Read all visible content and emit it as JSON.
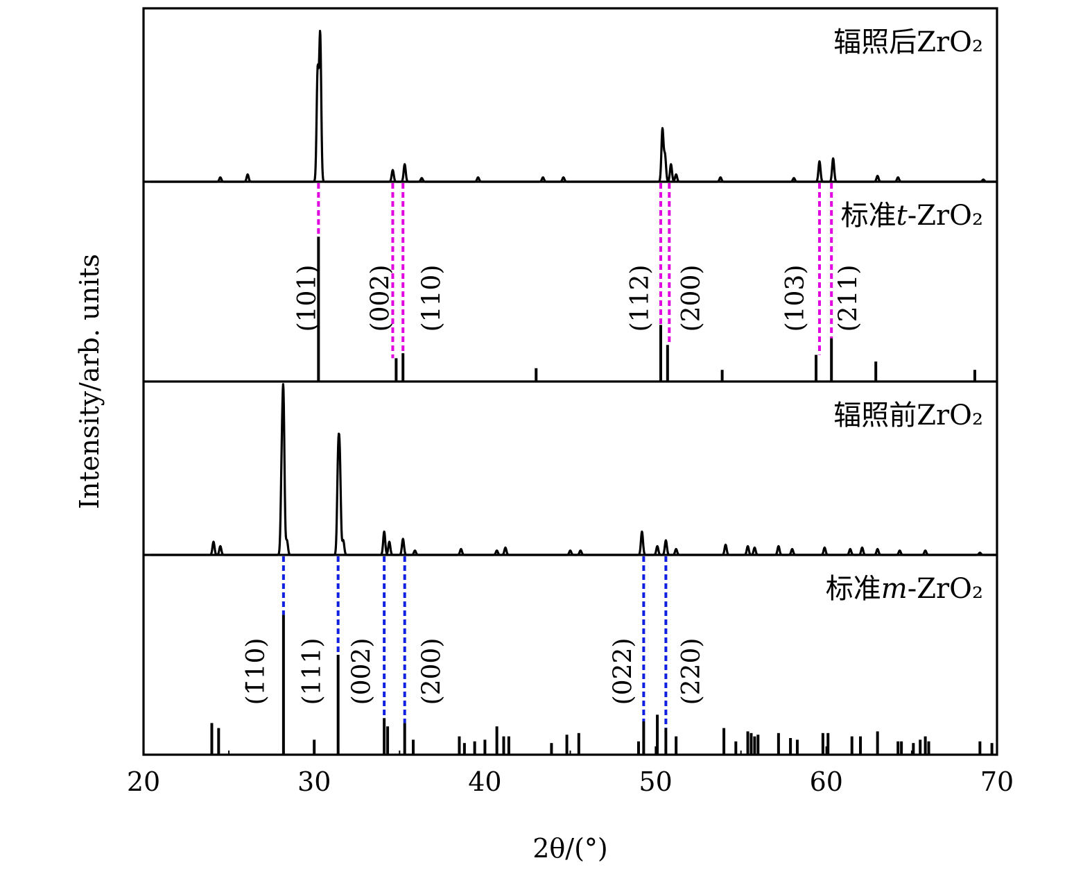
{
  "chart_data": {
    "type": "line",
    "xlabel": "2θ/(°)",
    "ylabel": "Intensity/arb. units",
    "xlim": [
      20,
      70
    ],
    "xticks": [
      20,
      30,
      40,
      50,
      60,
      70
    ],
    "grid": false,
    "panels": [
      {
        "id": "irradiated",
        "label": "辐照后ZrO₂",
        "style": "profile",
        "peaks": [
          {
            "x": 24.5,
            "h": 0.03
          },
          {
            "x": 26.1,
            "h": 0.05
          },
          {
            "x": 30.2,
            "h": 0.75
          },
          {
            "x": 30.35,
            "h": 1.0
          },
          {
            "x": 34.6,
            "h": 0.08
          },
          {
            "x": 35.3,
            "h": 0.12
          },
          {
            "x": 36.3,
            "h": 0.025
          },
          {
            "x": 39.6,
            "h": 0.03
          },
          {
            "x": 43.4,
            "h": 0.03
          },
          {
            "x": 44.6,
            "h": 0.03
          },
          {
            "x": 50.4,
            "h": 0.36
          },
          {
            "x": 50.55,
            "h": 0.18
          },
          {
            "x": 50.9,
            "h": 0.12
          },
          {
            "x": 51.2,
            "h": 0.05
          },
          {
            "x": 53.8,
            "h": 0.03
          },
          {
            "x": 58.1,
            "h": 0.025
          },
          {
            "x": 59.6,
            "h": 0.14
          },
          {
            "x": 60.4,
            "h": 0.16
          },
          {
            "x": 63.0,
            "h": 0.04
          },
          {
            "x": 64.2,
            "h": 0.03
          },
          {
            "x": 69.2,
            "h": 0.015
          }
        ]
      },
      {
        "id": "standard-t",
        "label_prefix": "标准",
        "label_italic": "t",
        "label_suffix": "-ZrO₂",
        "style": "sticks",
        "sticks": [
          {
            "x": 30.25,
            "h": 0.87
          },
          {
            "x": 34.8,
            "h": 0.14
          },
          {
            "x": 35.2,
            "h": 0.17
          },
          {
            "x": 43.0,
            "h": 0.08
          },
          {
            "x": 50.3,
            "h": 0.34
          },
          {
            "x": 50.7,
            "h": 0.22
          },
          {
            "x": 53.9,
            "h": 0.07
          },
          {
            "x": 59.4,
            "h": 0.16
          },
          {
            "x": 60.3,
            "h": 0.26
          },
          {
            "x": 62.9,
            "h": 0.12
          },
          {
            "x": 68.7,
            "h": 0.07
          }
        ],
        "hkl": [
          {
            "text": "(101)",
            "x": 29.6
          },
          {
            "text": "(002)",
            "x": 33.9
          },
          {
            "text": "(110)",
            "x": 36.9
          },
          {
            "text": "(112)",
            "x": 49.1
          },
          {
            "text": "(200)",
            "x": 52.1
          },
          {
            "text": "(103)",
            "x": 58.2
          },
          {
            "text": "(211)",
            "x": 61.3
          }
        ],
        "link_lines": [
          {
            "x": 30.25,
            "y_top": 0.0,
            "y_bottom": 0.87
          },
          {
            "x": 34.6,
            "y_top": 0.0,
            "y_bottom": 0.14
          },
          {
            "x": 35.2,
            "y_top": 0.0,
            "y_bottom": 0.17
          },
          {
            "x": 50.3,
            "y_top": 0.0,
            "y_bottom": 0.34
          },
          {
            "x": 50.8,
            "y_top": 0.0,
            "y_bottom": 0.22
          },
          {
            "x": 59.6,
            "y_top": 0.0,
            "y_bottom": 0.16
          },
          {
            "x": 60.3,
            "y_top": 0.0,
            "y_bottom": 0.26
          }
        ],
        "link_color": "#e000e0"
      },
      {
        "id": "pristine",
        "label": "辐照前ZrO₂",
        "style": "profile",
        "peaks": [
          {
            "x": 24.1,
            "h": 0.09
          },
          {
            "x": 24.5,
            "h": 0.06
          },
          {
            "x": 28.1,
            "h": 0.55
          },
          {
            "x": 28.2,
            "h": 1.0
          },
          {
            "x": 28.4,
            "h": 0.1
          },
          {
            "x": 31.4,
            "h": 0.6
          },
          {
            "x": 31.5,
            "h": 0.58
          },
          {
            "x": 31.7,
            "h": 0.1
          },
          {
            "x": 34.1,
            "h": 0.16
          },
          {
            "x": 34.4,
            "h": 0.09
          },
          {
            "x": 35.2,
            "h": 0.11
          },
          {
            "x": 35.9,
            "h": 0.03
          },
          {
            "x": 38.6,
            "h": 0.04
          },
          {
            "x": 40.7,
            "h": 0.03
          },
          {
            "x": 41.2,
            "h": 0.05
          },
          {
            "x": 45.0,
            "h": 0.03
          },
          {
            "x": 45.6,
            "h": 0.03
          },
          {
            "x": 49.2,
            "h": 0.16
          },
          {
            "x": 50.1,
            "h": 0.06
          },
          {
            "x": 50.6,
            "h": 0.1
          },
          {
            "x": 51.2,
            "h": 0.04
          },
          {
            "x": 54.1,
            "h": 0.07
          },
          {
            "x": 55.4,
            "h": 0.06
          },
          {
            "x": 55.8,
            "h": 0.05
          },
          {
            "x": 57.2,
            "h": 0.06
          },
          {
            "x": 58.0,
            "h": 0.04
          },
          {
            "x": 59.9,
            "h": 0.05
          },
          {
            "x": 61.4,
            "h": 0.04
          },
          {
            "x": 62.1,
            "h": 0.05
          },
          {
            "x": 63.0,
            "h": 0.04
          },
          {
            "x": 64.3,
            "h": 0.03
          },
          {
            "x": 65.8,
            "h": 0.03
          },
          {
            "x": 69.0,
            "h": 0.015
          }
        ]
      },
      {
        "id": "standard-m",
        "label_prefix": "标准",
        "label_italic": "m",
        "label_suffix": "-ZrO₂",
        "style": "sticks",
        "sticks": [
          {
            "x": 24.0,
            "h": 0.19
          },
          {
            "x": 24.4,
            "h": 0.16
          },
          {
            "x": 28.2,
            "h": 0.84
          },
          {
            "x": 30.0,
            "h": 0.09
          },
          {
            "x": 31.4,
            "h": 0.6
          },
          {
            "x": 34.1,
            "h": 0.22
          },
          {
            "x": 34.3,
            "h": 0.17
          },
          {
            "x": 35.3,
            "h": 0.19
          },
          {
            "x": 35.8,
            "h": 0.09
          },
          {
            "x": 38.5,
            "h": 0.11
          },
          {
            "x": 38.8,
            "h": 0.07
          },
          {
            "x": 39.4,
            "h": 0.08
          },
          {
            "x": 40.0,
            "h": 0.09
          },
          {
            "x": 40.7,
            "h": 0.17
          },
          {
            "x": 41.1,
            "h": 0.11
          },
          {
            "x": 41.4,
            "h": 0.11
          },
          {
            "x": 43.9,
            "h": 0.07
          },
          {
            "x": 44.8,
            "h": 0.12
          },
          {
            "x": 45.5,
            "h": 0.13
          },
          {
            "x": 49.0,
            "h": 0.08
          },
          {
            "x": 49.3,
            "h": 0.2
          },
          {
            "x": 50.1,
            "h": 0.24
          },
          {
            "x": 50.6,
            "h": 0.16
          },
          {
            "x": 51.2,
            "h": 0.11
          },
          {
            "x": 54.0,
            "h": 0.16
          },
          {
            "x": 54.7,
            "h": 0.08
          },
          {
            "x": 55.4,
            "h": 0.14
          },
          {
            "x": 55.6,
            "h": 0.13
          },
          {
            "x": 55.8,
            "h": 0.11
          },
          {
            "x": 56.0,
            "h": 0.12
          },
          {
            "x": 57.2,
            "h": 0.13
          },
          {
            "x": 57.9,
            "h": 0.1
          },
          {
            "x": 58.3,
            "h": 0.09
          },
          {
            "x": 59.8,
            "h": 0.13
          },
          {
            "x": 60.1,
            "h": 0.13
          },
          {
            "x": 61.5,
            "h": 0.11
          },
          {
            "x": 62.0,
            "h": 0.11
          },
          {
            "x": 63.0,
            "h": 0.14
          },
          {
            "x": 64.2,
            "h": 0.08
          },
          {
            "x": 64.4,
            "h": 0.08
          },
          {
            "x": 65.1,
            "h": 0.07
          },
          {
            "x": 65.5,
            "h": 0.09
          },
          {
            "x": 65.8,
            "h": 0.11
          },
          {
            "x": 66.0,
            "h": 0.08
          },
          {
            "x": 69.0,
            "h": 0.08
          },
          {
            "x": 69.7,
            "h": 0.07
          }
        ],
        "hkl": [
          {
            "text": "(1̄10)",
            "x": 26.6
          },
          {
            "text": "(111)",
            "x": 29.9
          },
          {
            "text": "(002)",
            "x": 32.8
          },
          {
            "text": "(200)",
            "x": 36.9
          },
          {
            "text": "(022)",
            "x": 48.1
          },
          {
            "text": "(220)",
            "x": 52.1
          }
        ],
        "link_lines": [
          {
            "x": 28.2,
            "y_top": 0.0,
            "y_bottom": 0.84
          },
          {
            "x": 31.4,
            "y_top": 0.0,
            "y_bottom": 0.6
          },
          {
            "x": 34.1,
            "y_top": 0.0,
            "y_bottom": 0.22
          },
          {
            "x": 35.3,
            "y_top": 0.0,
            "y_bottom": 0.19
          },
          {
            "x": 49.3,
            "y_top": 0.0,
            "y_bottom": 0.2
          },
          {
            "x": 50.6,
            "y_top": 0.0,
            "y_bottom": 0.16
          }
        ],
        "link_color": "#1020e0"
      }
    ]
  }
}
